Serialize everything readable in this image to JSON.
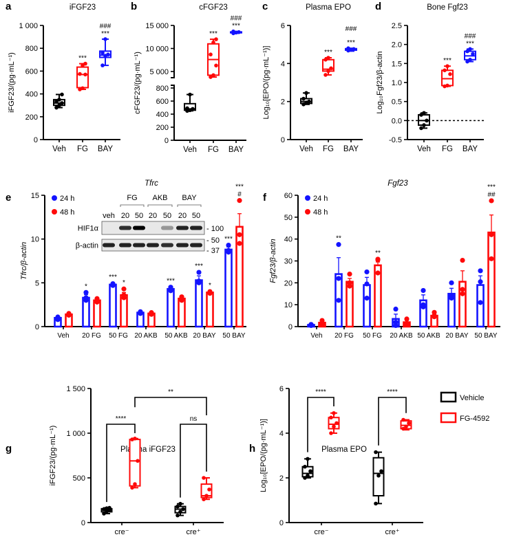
{
  "colors": {
    "veh": "#000000",
    "red": "#ff0a0a",
    "blue": "#1414ff"
  },
  "chart_data": [
    {
      "id": "a",
      "letter": "a",
      "type": "box",
      "title": "iFGF23",
      "ylabel": "iFGF23/(pg·mL⁻¹)",
      "ylim": [
        0,
        1000
      ],
      "yticks": [
        0,
        200,
        400,
        600,
        800,
        1000
      ],
      "ytick_labels": [
        "0",
        "200",
        "400",
        "600",
        "800",
        "1 000"
      ],
      "categories": [
        "Veh",
        "FG",
        "BAY"
      ],
      "box_colors": [
        "veh",
        "red",
        "blue"
      ],
      "boxes": [
        {
          "min": 280,
          "q1": 300,
          "median": 320,
          "q3": 350,
          "max": 395,
          "points": [
            280,
            300,
            320,
            335,
            350,
            395
          ]
        },
        {
          "min": 440,
          "q1": 455,
          "median": 570,
          "q3": 635,
          "max": 665,
          "points": [
            440,
            450,
            570,
            575,
            650,
            665
          ]
        },
        {
          "min": 650,
          "q1": 720,
          "median": 740,
          "q3": 775,
          "max": 880,
          "points": [
            650,
            735,
            745,
            760,
            880
          ]
        }
      ],
      "sig": [
        "",
        "***",
        "***"
      ],
      "sig2": [
        "",
        "",
        "###"
      ]
    },
    {
      "id": "b",
      "letter": "b",
      "type": "box",
      "title": "cFGF23",
      "ylabel": "cFGF23/(pg·mL⁻¹)",
      "ylim": [
        0,
        15000
      ],
      "axis_break": [
        800,
        5000
      ],
      "yticks": [
        0,
        200,
        400,
        600,
        800,
        5000,
        10000,
        15000
      ],
      "ytick_labels": [
        "0",
        "200",
        "400",
        "600",
        "800",
        "5 000",
        "10 000",
        "15 000"
      ],
      "categories": [
        "Veh",
        "FG",
        "BAY"
      ],
      "box_colors": [
        "veh",
        "red",
        "blue"
      ],
      "boxes": [
        {
          "min": 450,
          "q1": 460,
          "median": 480,
          "q3": 560,
          "max": 700,
          "points": [
            450,
            460,
            480,
            490,
            700
          ]
        },
        {
          "min": 3800,
          "q1": 4200,
          "median": 7600,
          "q3": 11000,
          "max": 12000,
          "points": [
            3800,
            4200,
            6300,
            8700,
            11300,
            12000
          ]
        },
        {
          "min": 13300,
          "q1": 13400,
          "median": 13500,
          "q3": 13600,
          "max": 13700,
          "points": [
            13300,
            13450,
            13550,
            13700
          ]
        }
      ],
      "sig": [
        "",
        "***",
        "***"
      ],
      "sig2": [
        "",
        "",
        "###"
      ]
    },
    {
      "id": "c",
      "letter": "c",
      "type": "box",
      "title": "Plasma EPO",
      "ylabel": "Log₁₀[EPO/(pg·mL⁻¹)]",
      "ylim": [
        0,
        6
      ],
      "yticks": [
        0,
        2,
        4,
        6
      ],
      "ytick_labels": [
        "0",
        "2",
        "4",
        "6"
      ],
      "categories": [
        "Veh",
        "FG",
        "BAY"
      ],
      "box_colors": [
        "veh",
        "red",
        "blue"
      ],
      "boxes": [
        {
          "min": 1.85,
          "q1": 1.9,
          "median": 2.0,
          "q3": 2.15,
          "max": 2.45,
          "points": [
            1.85,
            1.95,
            2.0,
            2.15,
            2.45
          ]
        },
        {
          "min": 3.4,
          "q1": 3.6,
          "median": 3.7,
          "q3": 4.2,
          "max": 4.3,
          "points": [
            3.4,
            3.6,
            3.75,
            4.2,
            4.3
          ]
        },
        {
          "min": 4.65,
          "q1": 4.7,
          "median": 4.75,
          "q3": 4.78,
          "max": 4.8,
          "points": [
            4.68,
            4.72,
            4.76,
            4.8
          ]
        }
      ],
      "sig": [
        "",
        "***",
        "***"
      ],
      "sig2": [
        "",
        "",
        "###"
      ]
    },
    {
      "id": "d",
      "letter": "d",
      "type": "box",
      "title": "Bone Fgf23",
      "ylabel": "Log₁₀Fgf23/β-actin",
      "ylim": [
        -0.5,
        2.5
      ],
      "yticks": [
        -0.5,
        0,
        0.5,
        1,
        1.5,
        2,
        2.5
      ],
      "ytick_labels": [
        "-0.5",
        "0.0",
        "0.5",
        "1.0",
        "1.5",
        "2.0",
        "2.5"
      ],
      "reference_line": 0,
      "categories": [
        "Veh",
        "FG",
        "BAY"
      ],
      "box_colors": [
        "veh",
        "red",
        "blue"
      ],
      "boxes": [
        {
          "min": -0.2,
          "q1": -0.12,
          "median": 0.0,
          "q3": 0.15,
          "max": 0.2,
          "points": [
            -0.2,
            -0.12,
            0.0,
            0.15,
            0.2
          ]
        },
        {
          "min": 0.9,
          "q1": 0.92,
          "median": 1.1,
          "q3": 1.32,
          "max": 1.43,
          "points": [
            0.9,
            0.92,
            1.22,
            1.32,
            1.43
          ]
        },
        {
          "min": 1.55,
          "q1": 1.6,
          "median": 1.7,
          "q3": 1.82,
          "max": 1.88,
          "points": [
            1.55,
            1.6,
            1.75,
            1.82,
            1.88
          ]
        }
      ],
      "sig": [
        "",
        "***",
        "***"
      ],
      "sig2": [
        "",
        "",
        "###"
      ]
    },
    {
      "id": "e",
      "letter": "e",
      "type": "bar",
      "title": "Tfrc",
      "ylabel": "Tfrc/β-actin",
      "ylim": [
        0,
        15
      ],
      "yticks": [
        0,
        5,
        10,
        15
      ],
      "ytick_labels": [
        "0",
        "5",
        "10",
        "15"
      ],
      "categories": [
        "Veh",
        "20 FG",
        "50 FG",
        "20 AKB",
        "50 AKB",
        "20 BAY",
        "50 BAY"
      ],
      "series": [
        {
          "name": "24 h",
          "color": "blue",
          "values": [
            1.0,
            3.3,
            4.8,
            1.6,
            4.3,
            5.3,
            8.8
          ],
          "errors": [
            0.1,
            0.35,
            0.15,
            0.05,
            0.2,
            0.5,
            0.3
          ],
          "points": [
            [
              0.8,
              1.0,
              1.1
            ],
            [
              3.0,
              3.3,
              3.9
            ],
            [
              4.7,
              4.8,
              4.9
            ],
            [
              1.5,
              1.6,
              1.7
            ],
            [
              4.1,
              4.3,
              4.5
            ],
            [
              5.0,
              5.2,
              6.2
            ],
            [
              8.5,
              8.7,
              9.3
            ]
          ],
          "sig": [
            "",
            "*",
            "***",
            "",
            "***",
            "***",
            "***"
          ],
          "sig2": [
            "",
            "",
            "",
            "",
            "",
            "",
            ""
          ]
        },
        {
          "name": "48 h",
          "color": "red",
          "values": [
            1.4,
            3.0,
            3.6,
            1.5,
            3.2,
            3.9,
            11.4
          ],
          "errors": [
            0.05,
            0.15,
            0.3,
            0.05,
            0.1,
            0.1,
            1.5
          ],
          "points": [
            [
              1.3,
              1.4,
              1.5
            ],
            [
              2.8,
              3.0,
              3.2
            ],
            [
              3.3,
              3.6,
              4.3
            ],
            [
              1.4,
              1.5,
              1.6
            ],
            [
              3.0,
              3.2,
              3.4
            ],
            [
              3.8,
              3.9,
              4.0
            ],
            [
              9.5,
              10.5,
              14.4
            ]
          ],
          "sig": [
            "",
            "",
            "*",
            "",
            "",
            "*",
            "#"
          ],
          "sig2": [
            "",
            "",
            "",
            "",
            "",
            "",
            "***"
          ]
        }
      ],
      "legend": "top-left",
      "inset": {
        "groups": [
          "FG",
          "AKB",
          "BAY"
        ],
        "lanes": [
          "veh",
          "20",
          "50",
          "20",
          "50",
          "20",
          "50"
        ],
        "rows": [
          {
            "label": "HIF1α",
            "intensity": [
              0,
              0.8,
              1,
              0,
              0.35,
              0.85,
              0.85
            ]
          },
          {
            "label": "β-actin",
            "intensity": [
              0.85,
              0.85,
              0.85,
              0.85,
              0.8,
              0.85,
              0.85
            ]
          }
        ],
        "markers": [
          "- 100",
          "- 50",
          "- 37"
        ]
      }
    },
    {
      "id": "f",
      "letter": "f",
      "type": "bar",
      "title": "Fgf23",
      "ylabel": "Fgf23/β-actin",
      "ylim": [
        0,
        60
      ],
      "yticks": [
        0,
        10,
        20,
        30,
        40,
        50,
        60
      ],
      "ytick_labels": [
        "0",
        "10",
        "20",
        "30",
        "40",
        "50",
        "60"
      ],
      "categories": [
        "Veh",
        "20 FG",
        "50 FG",
        "20 AKB",
        "50 AKB",
        "20 BAY",
        "50 BAY"
      ],
      "series": [
        {
          "name": "24 h",
          "color": "blue",
          "values": [
            0.8,
            24,
            19,
            3.5,
            12,
            15,
            19
          ],
          "errors": [
            0.2,
            7.5,
            3.5,
            2.2,
            2.5,
            2.5,
            4.2
          ],
          "points": [
            [
              0.5,
              0.8,
              1.0
            ],
            [
              12,
              22,
              37.5
            ],
            [
              13,
              19.5,
              25
            ],
            [
              0.5,
              2,
              8
            ],
            [
              9,
              10,
              16.5
            ],
            [
              13,
              14,
              20
            ],
            [
              11,
              20.5,
              25.5
            ]
          ],
          "sig": [
            "",
            "**",
            "",
            "",
            "",
            "",
            ""
          ],
          "sig2": [
            "",
            "",
            "",
            "",
            "",
            "",
            ""
          ]
        },
        {
          "name": "48 h",
          "color": "red",
          "values": [
            1.8,
            20.5,
            28,
            2,
            5,
            20.5,
            43
          ],
          "errors": [
            0.5,
            1.5,
            1.5,
            0.8,
            0.7,
            5,
            8
          ],
          "points": [
            [
              1,
              1.5,
              2.8
            ],
            [
              18.5,
              20,
              24
            ],
            [
              24.5,
              30.5,
              30.8
            ],
            [
              0.8,
              1.5,
              3.5
            ],
            [
              4.5,
              5,
              6.5
            ],
            [
              15,
              17,
              30.3
            ],
            [
              31,
              42,
              57.5
            ]
          ],
          "sig": [
            "",
            "",
            "**",
            "",
            "",
            "",
            "##"
          ],
          "sig2": [
            "",
            "",
            "",
            "",
            "",
            "",
            "***"
          ]
        }
      ],
      "legend": "top-left"
    },
    {
      "id": "g",
      "letter": "g",
      "type": "box",
      "title": "Plasma iFGF23",
      "ylabel": "iFGF23/(pg·mL⁻¹)",
      "ylim": [
        0,
        1500
      ],
      "yticks": [
        0,
        500,
        1000,
        1500
      ],
      "ytick_labels": [
        "0",
        "500",
        "1 000",
        "1 500"
      ],
      "groups": [
        "cre⁻",
        "cre⁺"
      ],
      "box_colors": [
        "veh",
        "red",
        "veh",
        "red"
      ],
      "boxes": [
        {
          "min": 100,
          "q1": 120,
          "median": 140,
          "q3": 155,
          "max": 165,
          "points": [
            100,
            125,
            140,
            150,
            160,
            165
          ]
        },
        {
          "min": 390,
          "q1": 410,
          "median": 690,
          "q3": 930,
          "max": 940,
          "points": [
            390,
            430,
            690,
            930,
            940
          ]
        },
        {
          "min": 80,
          "q1": 110,
          "median": 150,
          "q3": 180,
          "max": 210,
          "points": [
            80,
            120,
            150,
            180,
            210
          ]
        },
        {
          "min": 260,
          "q1": 280,
          "median": 300,
          "q3": 430,
          "max": 500,
          "points": [
            260,
            300,
            370,
            500
          ]
        }
      ],
      "comparisons": [
        {
          "a": 0,
          "b": 1,
          "label": "****",
          "level": 1100,
          "ends": [
            230,
            1000
          ]
        },
        {
          "a": 2,
          "b": 3,
          "label": "ns",
          "level": 1100,
          "ends": [
            280,
            570
          ]
        },
        {
          "a": 1,
          "b": 3,
          "label": "**",
          "level": 1400,
          "ends": [
            1290,
            1200
          ]
        }
      ]
    },
    {
      "id": "h",
      "letter": "h",
      "type": "box",
      "title": "Plasma EPO",
      "ylabel": "Log₁₀[EPO/(pg·mL⁻¹)]",
      "ylim": [
        0,
        6
      ],
      "yticks": [
        0,
        2,
        4,
        6
      ],
      "ytick_labels": [
        "0",
        "2",
        "4",
        "6"
      ],
      "groups": [
        "cre⁻",
        "cre⁺"
      ],
      "box_colors": [
        "veh",
        "red",
        "veh",
        "red"
      ],
      "boxes": [
        {
          "min": 2.0,
          "q1": 2.05,
          "median": 2.2,
          "q3": 2.5,
          "max": 2.85,
          "points": [
            2.0,
            2.1,
            2.3,
            2.5,
            2.85
          ]
        },
        {
          "min": 4.0,
          "q1": 4.2,
          "median": 4.4,
          "q3": 4.7,
          "max": 4.9,
          "points": [
            4.0,
            4.3,
            4.45,
            4.7,
            4.9
          ]
        },
        {
          "min": 0.85,
          "q1": 1.2,
          "median": 2.2,
          "q3": 2.9,
          "max": 3.15,
          "points": [
            0.85,
            2.1,
            2.3,
            3.15
          ]
        },
        {
          "min": 4.15,
          "q1": 4.2,
          "median": 4.35,
          "q3": 4.55,
          "max": 4.6,
          "points": [
            4.2,
            4.3,
            4.45,
            4.6
          ]
        }
      ],
      "comparisons": [
        {
          "a": 0,
          "b": 1,
          "label": "****",
          "level": 5.6,
          "ends": [
            3.15,
            5.2
          ]
        },
        {
          "a": 2,
          "b": 3,
          "label": "****",
          "level": 5.6,
          "ends": [
            3.45,
            4.9
          ]
        }
      ],
      "legend": {
        "entries": [
          {
            "label": "Vehicle",
            "color": "veh"
          },
          {
            "label": "FG-4592",
            "color": "red"
          }
        ],
        "placement": "right"
      }
    }
  ]
}
